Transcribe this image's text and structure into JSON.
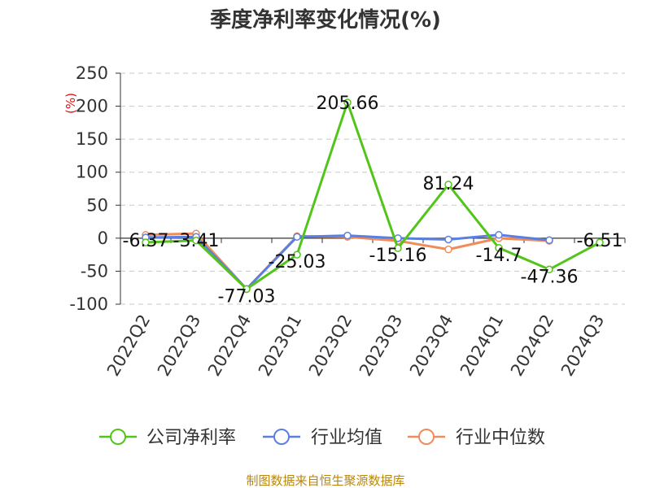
{
  "chart_data": {
    "type": "line",
    "title": "季度净利率变化情况(%)",
    "ylabel": "(%)",
    "xlabel": "",
    "categories": [
      "2022Q2",
      "2022Q3",
      "2022Q4",
      "2023Q1",
      "2023Q2",
      "2023Q3",
      "2023Q4",
      "2024Q1",
      "2024Q2",
      "2024Q3"
    ],
    "ylim": [
      -100,
      250
    ],
    "yticks": [
      250,
      200,
      150,
      100,
      50,
      0,
      -50,
      -100
    ],
    "grid": true,
    "legend_position": "bottom",
    "series": [
      {
        "name": "公司净利率",
        "color": "#52c41a",
        "values": [
          -6.37,
          -3.41,
          -77.03,
          -25.03,
          205.66,
          -15.16,
          81.24,
          -14.7,
          -47.36,
          -6.51
        ],
        "labels": [
          "-6.37",
          "-3.41",
          "-77.03",
          "-25.03",
          "205.66",
          "-15.16",
          "81.24",
          "-14.7",
          "-47.36",
          "-6.51"
        ]
      },
      {
        "name": "行业均值",
        "color": "#5b7fe0",
        "values": [
          1,
          2,
          -77,
          2,
          4,
          0,
          -2,
          5,
          -3,
          null
        ]
      },
      {
        "name": "行业中位数",
        "color": "#f08c5a",
        "values": [
          5,
          7,
          -77,
          3,
          2,
          -4,
          -17,
          0,
          -4,
          null
        ]
      }
    ]
  },
  "footer": {
    "source": "制图数据来自恒生聚源数据库"
  }
}
